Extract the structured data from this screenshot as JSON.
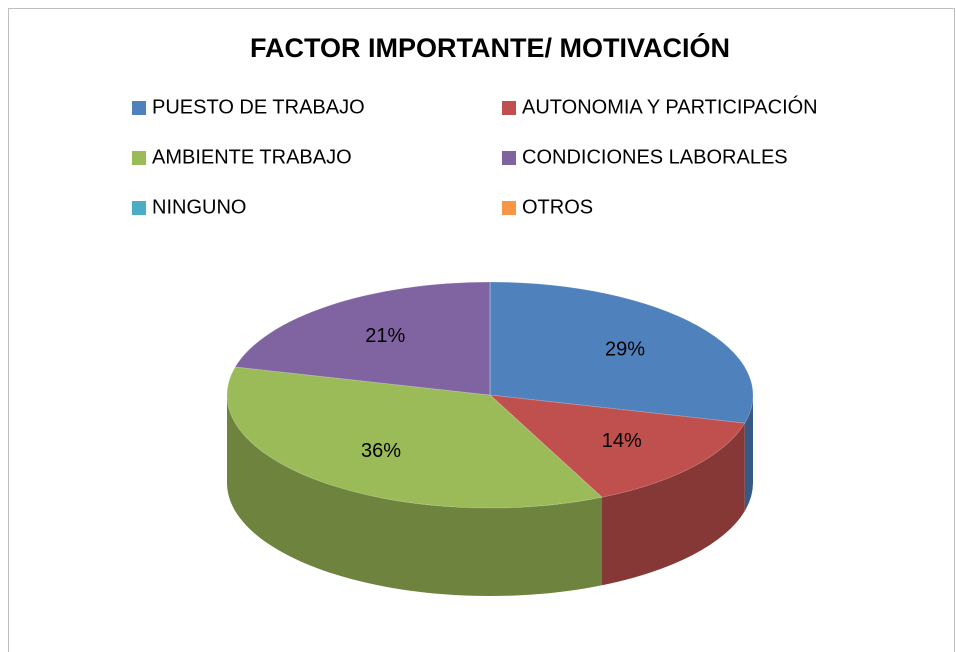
{
  "chart_data": {
    "type": "pie",
    "title": "FACTOR IMPORTANTE/ MOTIVACIÓN",
    "categories": [
      "PUESTO DE TRABAJO",
      "AUTONOMIA Y PARTICIPACIÓN",
      "AMBIENTE TRABAJO",
      "CONDICIONES LABORALES",
      "NINGUNO",
      "OTROS"
    ],
    "values": [
      29,
      14,
      36,
      21,
      0,
      0
    ],
    "value_labels": [
      "29%",
      "14%",
      "36%",
      "21%",
      null,
      null
    ],
    "colors": [
      "#4f81bd",
      "#c0504d",
      "#9bbb59",
      "#8064a2",
      "#4bacc6",
      "#f79646"
    ]
  }
}
